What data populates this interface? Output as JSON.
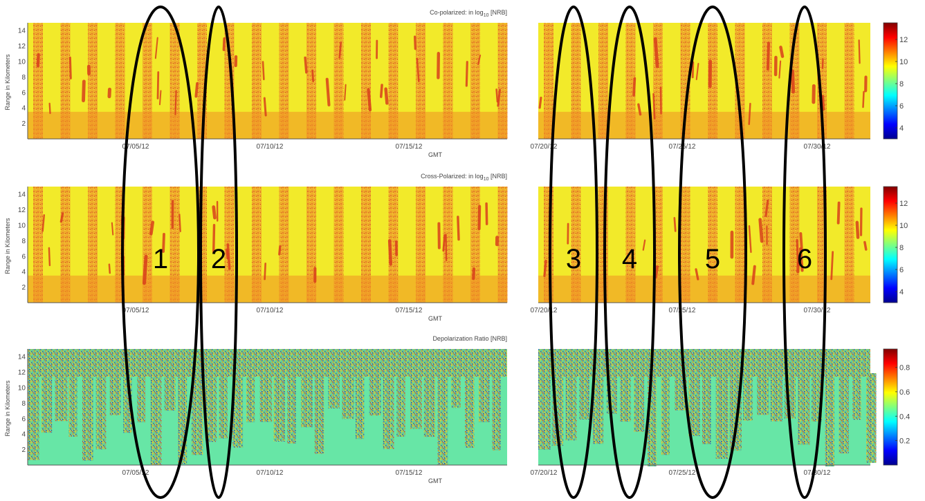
{
  "chart_data": [
    {
      "type": "heatmap",
      "title_main": "Co-polarized: in log",
      "title_sub": "10",
      "title_tail": " [NRB]",
      "xlabel": "GMT",
      "ylabel": "Range in Kilometers",
      "yticks": [
        2,
        4,
        6,
        8,
        10,
        12,
        14
      ],
      "ylim": [
        0,
        15
      ],
      "xtick_labels": [
        "07/05/12",
        "07/10/12",
        "07/15/12",
        "07/20/12",
        "07/25/12",
        "07/30/12"
      ],
      "colorbar_ticks": [
        4,
        6,
        8,
        10,
        12
      ],
      "colorbar_range": [
        3,
        13.5
      ],
      "colormap": "jet"
    },
    {
      "type": "heatmap",
      "title_main": "Cross-Polarized: in log",
      "title_sub": "10",
      "title_tail": " [NRB]",
      "xlabel": "GMT",
      "ylabel": "Range in Kilometers",
      "yticks": [
        2,
        4,
        6,
        8,
        10,
        12,
        14
      ],
      "ylim": [
        0,
        15
      ],
      "xtick_labels": [
        "07/05/12",
        "07/10/12",
        "07/15/12",
        "07/20/12",
        "07/25/12",
        "07/30/12"
      ],
      "colorbar_ticks": [
        4,
        6,
        8,
        10,
        12
      ],
      "colorbar_range": [
        3,
        13.5
      ],
      "colormap": "jet"
    },
    {
      "type": "heatmap",
      "title_main": "Depolarization Ratio [NRB]",
      "title_sub": "",
      "title_tail": "",
      "xlabel": "GMT",
      "ylabel": "Range in Kilometers",
      "yticks": [
        2,
        4,
        6,
        8,
        10,
        12,
        14
      ],
      "ylim": [
        0,
        15
      ],
      "xtick_labels": [
        "07/05/12",
        "07/10/12",
        "07/15/12",
        "07/20/12",
        "07/25/12",
        "07/30/12"
      ],
      "colorbar_ticks": [
        0.2,
        0.4,
        0.6,
        0.8
      ],
      "colorbar_range": [
        0,
        0.95
      ],
      "colormap": "jet"
    }
  ],
  "annotations": [
    "1",
    "2",
    "3",
    "4",
    "5",
    "6"
  ],
  "colors": {
    "background_plot": "#f2ea2a",
    "stripe": "#eea22a",
    "boundary_layer": "#f08f22",
    "cloud": "#d9401b",
    "depol_clear": "#67e6a6",
    "ellipse": "#000000"
  }
}
